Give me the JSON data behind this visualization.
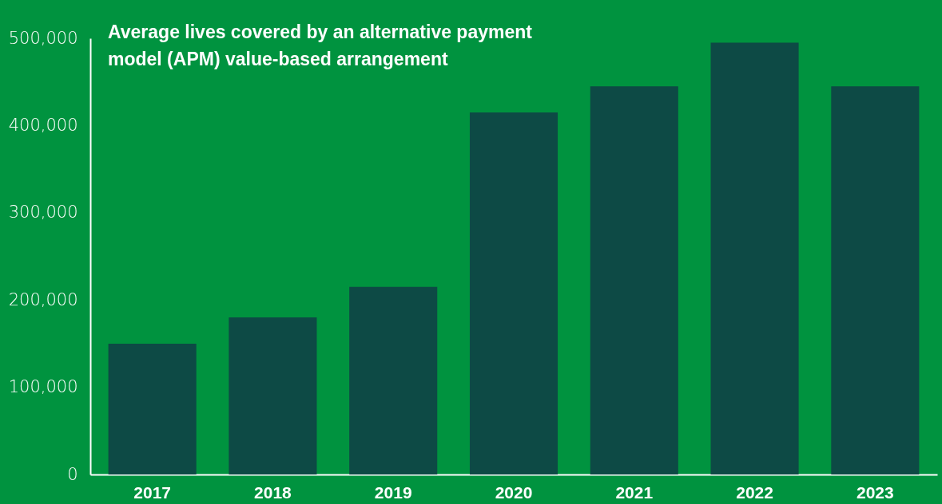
{
  "chart_data": {
    "type": "bar",
    "title": "Average lives covered by an alternative payment model (APM) value-based arrangement",
    "categories": [
      "2017",
      "2018",
      "2019",
      "2020",
      "2021",
      "2022",
      "2023"
    ],
    "values": [
      150000,
      180000,
      215000,
      415000,
      445000,
      495000,
      445000
    ],
    "color": "#0d4a45",
    "ylim": [
      0,
      500000
    ],
    "yticks": [
      0,
      {
        "value": 100000,
        "label": "100,000"
      },
      {
        "value": 200000,
        "label": "200,000"
      },
      {
        "value": 300000,
        "label": "300,000"
      },
      {
        "value": 400000,
        "label": "400,000"
      },
      {
        "value": 500000,
        "label": "500,000"
      }
    ],
    "grid": false
  }
}
